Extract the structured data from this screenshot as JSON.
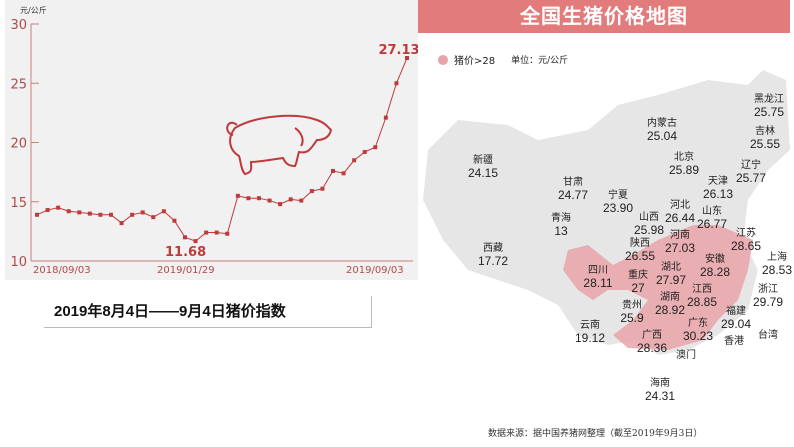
{
  "chart_data": {
    "type": "line",
    "title": "",
    "ylabel": "元/公斤",
    "xlabel": "",
    "ylim": [
      10,
      30
    ],
    "yticks": [
      10,
      15,
      20,
      25,
      30
    ],
    "xtick_labels": [
      "2018/09/03",
      "2019/01/29",
      "2019/09/03"
    ],
    "grid": false,
    "values": [
      13.9,
      14.3,
      14.5,
      14.2,
      14.1,
      14.0,
      13.9,
      13.9,
      13.2,
      13.9,
      14.1,
      13.7,
      14.2,
      13.4,
      12.0,
      11.68,
      12.4,
      12.4,
      12.3,
      15.5,
      15.3,
      15.3,
      15.1,
      14.8,
      15.2,
      15.1,
      15.9,
      16.1,
      17.6,
      17.4,
      18.5,
      19.2,
      19.6,
      22.1,
      25.0,
      27.13
    ],
    "annotations": [
      {
        "index": 15,
        "label": "11.68"
      },
      {
        "index": 35,
        "label": "27.13"
      }
    ],
    "color": "#c0393b"
  },
  "caption": "2019年8月4日——9月4日猪价指数",
  "map": {
    "title": "全国生猪价格地图",
    "legend_label": "猪价>28",
    "unit_label": "单位：元/公斤",
    "highlight_color": "#e8a3a8",
    "base_color": "#e6e6e6",
    "provinces": [
      {
        "name": "黑龙江",
        "value": "25.75"
      },
      {
        "name": "内蒙古",
        "value": "25.04"
      },
      {
        "name": "吉林",
        "value": "25.55"
      },
      {
        "name": "新疆",
        "value": "24.15"
      },
      {
        "name": "北京",
        "value": "25.89"
      },
      {
        "name": "辽宁",
        "value": "25.77"
      },
      {
        "name": "甘肃",
        "value": "24.77"
      },
      {
        "name": "天津",
        "value": "26.13"
      },
      {
        "name": "宁夏",
        "value": "23.90"
      },
      {
        "name": "河北",
        "value": "26.44"
      },
      {
        "name": "山西",
        "value": "25.98"
      },
      {
        "name": "山东",
        "value": "26.77"
      },
      {
        "name": "青海",
        "value": "13"
      },
      {
        "name": "江苏",
        "value": "28.65"
      },
      {
        "name": "河南",
        "value": "27.03"
      },
      {
        "name": "陕西",
        "value": "26.55"
      },
      {
        "name": "西藏",
        "value": "17.72"
      },
      {
        "name": "安徽",
        "value": "28.28"
      },
      {
        "name": "上海",
        "value": "28.53"
      },
      {
        "name": "湖北",
        "value": "27.97"
      },
      {
        "name": "四川",
        "value": "28.11"
      },
      {
        "name": "重庆",
        "value": "27"
      },
      {
        "name": "江西",
        "value": "28.85"
      },
      {
        "name": "浙江",
        "value": "29.79"
      },
      {
        "name": "湖南",
        "value": "28.92"
      },
      {
        "name": "福建",
        "value": "29.04"
      },
      {
        "name": "贵州",
        "value": "25.9"
      },
      {
        "name": "云南",
        "value": "19.12"
      },
      {
        "name": "广东",
        "value": "30.23"
      },
      {
        "name": "广西",
        "value": "28.36"
      },
      {
        "name": "香港",
        "value": ""
      },
      {
        "name": "台湾",
        "value": ""
      },
      {
        "name": "澳门",
        "value": ""
      },
      {
        "name": "海南",
        "value": "24.31"
      }
    ],
    "source": "数据来源：据中国养猪网整理（截至2019年9月3日）"
  }
}
